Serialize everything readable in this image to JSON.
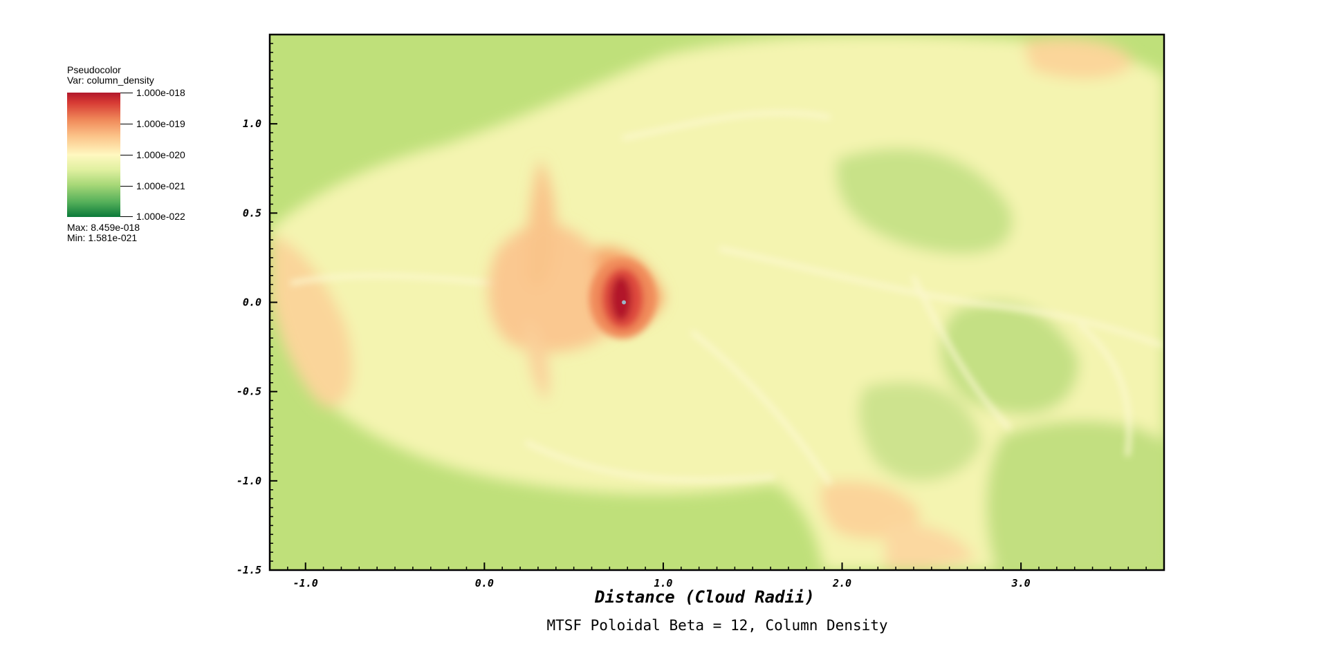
{
  "legend": {
    "plot_type": "Pseudocolor",
    "variable": "Var: column_density",
    "ticks": [
      "1.000e-018",
      "1.000e-019",
      "1.000e-020",
      "1.000e-021",
      "1.000e-022"
    ],
    "max": "Max:  8.459e-018",
    "min": "Min:  1.581e-021"
  },
  "chart_data": {
    "type": "heatmap",
    "title": "MTSF Poloidal Beta = 12, Column Density",
    "xlabel": "Distance (Cloud Radii)",
    "ylabel": "",
    "xlim": [
      -1.2,
      3.8
    ],
    "ylim": [
      -1.5,
      1.5
    ],
    "x_ticks": [
      -1.0,
      0.0,
      1.0,
      2.0,
      3.0
    ],
    "x_tick_labels": [
      "-1.0",
      "0.0",
      "1.0",
      "2.0",
      "3.0"
    ],
    "y_ticks": [
      1.0,
      0.5,
      0.0,
      -0.5,
      -1.0,
      -1.5
    ],
    "y_tick_labels": [
      "1.0",
      "0.5",
      "0.0",
      "-0.5",
      "-1.0",
      "-1.5"
    ],
    "colorscale": "log",
    "color_range": [
      1e-22,
      1e-18
    ],
    "colors": {
      "background": "#bfe07a",
      "low": "#0b7a3a",
      "mid": "#fff8c0",
      "high": "#b2182b"
    },
    "features": [
      {
        "kind": "dense_core",
        "x": 0.78,
        "y": 0.0,
        "level": 1e-18
      },
      {
        "kind": "cloud_envelope",
        "x": 1.5,
        "y": 0.0,
        "level": 1e-20
      }
    ]
  }
}
